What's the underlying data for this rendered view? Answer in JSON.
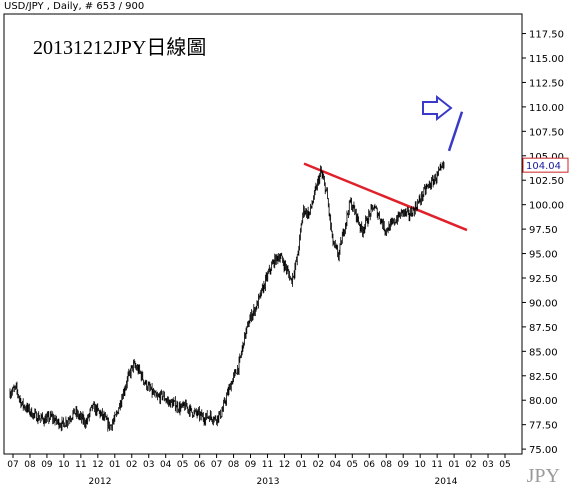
{
  "header": {
    "info": "USD/JPY , Daily, # 653 / 900"
  },
  "watermark": "JPY",
  "chart_data": {
    "type": "ohlc",
    "title": "20131212JPY日線圖",
    "symbol": "USD/JPY",
    "timeframe": "Daily",
    "bar_counter": "# 653 / 900",
    "last_price": "104.04",
    "ylim": [
      74.5,
      119.5
    ],
    "y_ticks": [
      "75.00",
      "77.50",
      "80.00",
      "82.50",
      "85.00",
      "87.50",
      "90.00",
      "92.50",
      "95.00",
      "97.50",
      "100.00",
      "102.50",
      "105.00",
      "107.50",
      "110.00",
      "112.50",
      "115.00",
      "117.50"
    ],
    "x_month_labels": [
      "07",
      "08",
      "09",
      "10",
      "11",
      "12",
      "01",
      "02",
      "03",
      "04",
      "05",
      "06",
      "07",
      "08",
      "09",
      "11",
      "12",
      "01",
      "02",
      "04",
      "05",
      "06",
      "08",
      "09",
      "10",
      "11",
      "01",
      "02",
      "03",
      "05"
    ],
    "x_year_labels": [
      "2012",
      "2013",
      "2014"
    ],
    "colors": {
      "price": "#000000",
      "trendline": "#e0202a",
      "projection": "#3a3ac8",
      "arrow": "#3a3ac8",
      "last_price_box": "#cc2222"
    },
    "annotations": {
      "trendline": {
        "from": [
          "2013-05",
          104.2
        ],
        "to": [
          "2014-01",
          97.4
        ],
        "color": "#e0202a"
      },
      "projection": {
        "from": [
          "2013-12",
          105.5
        ],
        "to": [
          "2014-01",
          109.5
        ],
        "color": "#3a3ac8"
      },
      "arrow": {
        "at": [
          "2013-12",
          109.5
        ],
        "direction": "right",
        "color": "#3a3ac8"
      }
    },
    "series": [
      {
        "values": [
          80.8,
          81.2,
          79.6,
          79.1,
          78.5,
          78.2,
          78.0,
          78.3,
          77.8,
          77.5,
          78.1,
          78.8,
          78.2,
          77.7,
          79.3,
          78.9,
          78.2,
          77.3,
          78.2,
          80.2,
          82.1,
          83.6,
          83.0,
          81.8,
          81.0,
          80.2,
          80.5,
          79.8,
          79.6,
          79.2,
          79.4,
          78.8,
          78.6,
          78.2,
          78.4,
          78.1,
          78.6,
          80.5,
          82.2,
          83.5,
          86.5,
          88.5,
          89.6,
          91.2,
          92.9,
          94.2,
          94.8,
          93.6,
          92.2,
          94.6,
          99.5,
          99.0,
          101.2,
          103.4,
          101.2,
          96.2,
          94.8,
          97.6,
          100.3,
          99.0,
          97.3,
          98.6,
          99.8,
          98.8,
          97.4,
          97.9,
          98.6,
          99.3,
          98.9,
          99.6,
          100.6,
          101.7,
          102.3,
          103.1,
          104.0
        ]
      }
    ]
  }
}
